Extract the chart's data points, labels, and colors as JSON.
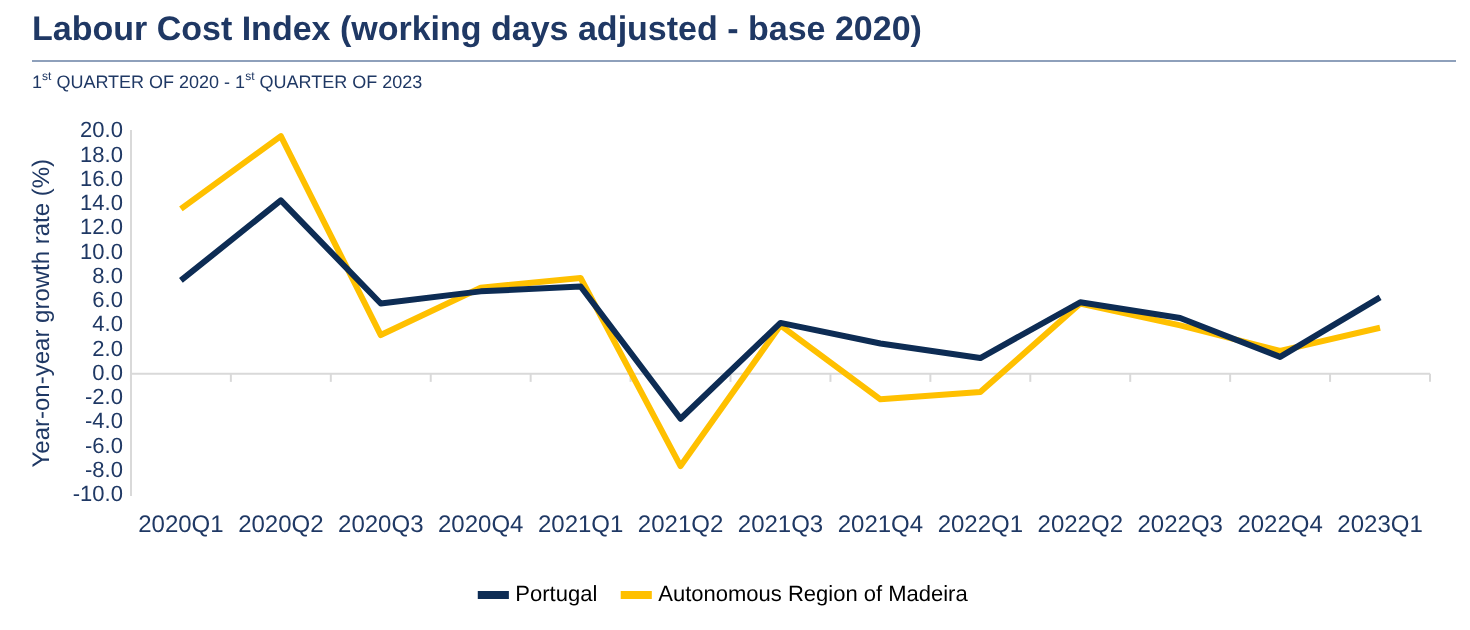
{
  "chart_data": {
    "type": "line",
    "title": "Labour Cost Index (working days adjusted - base 2020)",
    "subtitle": "1$^{st}$ QUARTER OF 2020 - 1$^{st}$ QUARTER OF 2023",
    "ylabel": "Year-on-year growth rate (%)",
    "categories": [
      "2020Q1",
      "2020Q2",
      "2020Q3",
      "2020Q4",
      "2021Q1",
      "2021Q2",
      "2021Q3",
      "2021Q4",
      "2022Q1",
      "2022Q2",
      "2022Q3",
      "2022Q4",
      "2023Q1"
    ],
    "series": [
      {
        "name": "Portugal",
        "color": "#0d2c54",
        "values": [
          7.7,
          14.3,
          5.8,
          6.8,
          7.2,
          -3.7,
          4.2,
          2.5,
          1.3,
          5.9,
          4.6,
          1.4,
          6.3
        ]
      },
      {
        "name": "Autonomous Region of Madeira",
        "color": "#ffc000",
        "values": [
          13.6,
          19.6,
          3.2,
          7.1,
          7.9,
          -7.6,
          4.0,
          -2.1,
          -1.5,
          5.8,
          4.0,
          1.9,
          3.8
        ]
      }
    ],
    "ylim": [
      -10,
      20
    ],
    "yticks": [
      {
        "value": -10,
        "label": "-10.0"
      },
      {
        "value": -8,
        "label": "-8.0"
      },
      {
        "value": -6,
        "label": "-6.0"
      },
      {
        "value": -4,
        "label": "-4.0"
      },
      {
        "value": -2,
        "label": "-2.0"
      },
      {
        "value": 0,
        "label": "0.0"
      },
      {
        "value": 2,
        "label": "2.0"
      },
      {
        "value": 4,
        "label": "4.0"
      },
      {
        "value": 6,
        "label": "6.0"
      },
      {
        "value": 8,
        "label": "8.0"
      },
      {
        "value": 10,
        "label": "10.0"
      },
      {
        "value": 12,
        "label": "12.0"
      },
      {
        "value": 14,
        "label": "14.0"
      },
      {
        "value": 16,
        "label": "16.0"
      },
      {
        "value": 18,
        "label": "18.0"
      },
      {
        "value": 20,
        "label": "20.0"
      }
    ],
    "ref_lines": [
      {
        "axis": "y",
        "value": 0,
        "color": "#d9d9d9"
      }
    ],
    "grid": false,
    "legend": "bottom",
    "marker": "none",
    "line_style": "solid"
  }
}
